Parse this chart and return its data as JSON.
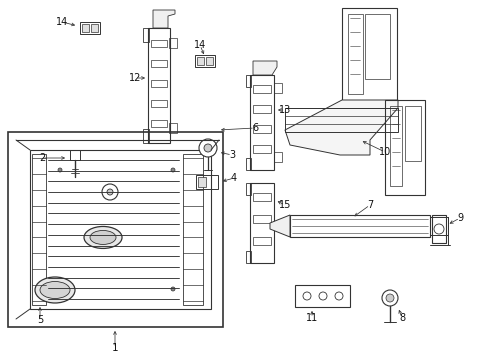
{
  "bg_color": "#ffffff",
  "line_color": "#333333",
  "text_color": "#111111",
  "fig_width": 4.89,
  "fig_height": 3.6,
  "dpi": 100,
  "label_fs": 7.0
}
